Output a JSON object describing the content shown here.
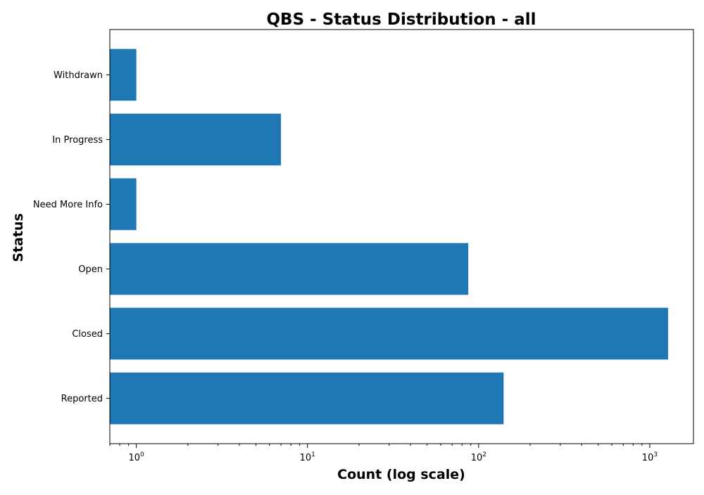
{
  "chart_data": {
    "type": "bar",
    "orientation": "horizontal",
    "title": "QBS - Status Distribution - all",
    "xlabel": "Count (log scale)",
    "ylabel": "Status",
    "x_scale": "log",
    "xlim": [
      0.7,
      1800
    ],
    "x_ticks": [
      {
        "value": 1,
        "base": "10",
        "exp": "0"
      },
      {
        "value": 10,
        "base": "10",
        "exp": "1"
      },
      {
        "value": 100,
        "base": "10",
        "exp": "2"
      },
      {
        "value": 1000,
        "base": "10",
        "exp": "3"
      }
    ],
    "categories": [
      "Reported",
      "Closed",
      "Open",
      "Need More Info",
      "In Progress",
      "Withdrawn"
    ],
    "values": [
      140,
      1280,
      87,
      1,
      7,
      1
    ],
    "color": "#1f77b4",
    "grid": false,
    "legend": "none"
  }
}
